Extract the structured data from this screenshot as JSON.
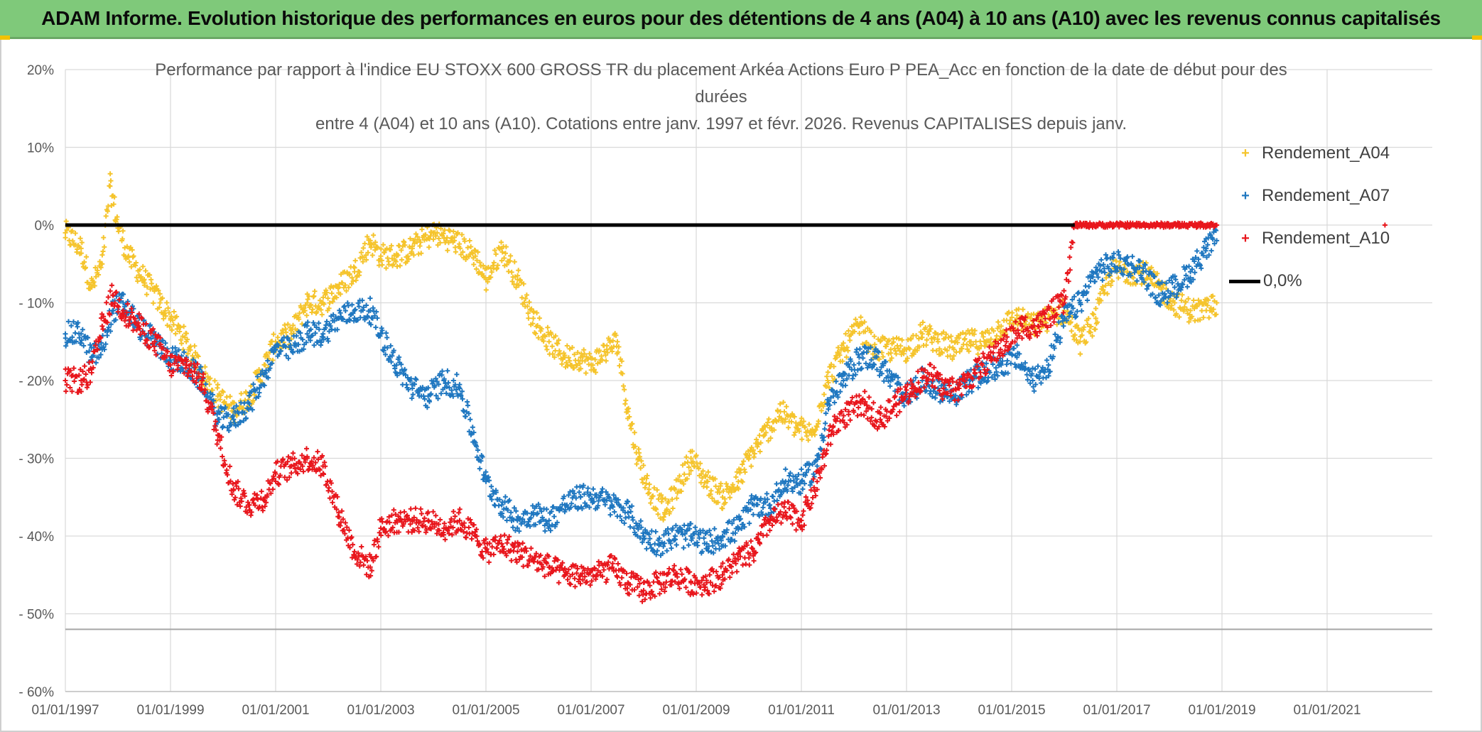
{
  "banner": {
    "title": "ADAM Informe. Evolution historique des performances en euros pour des détentions de 4 ans (A04) à 10 ans (A10) avec les revenus connus capitalisés"
  },
  "chart_data": {
    "type": "scatter",
    "title_lines": [
      "Performance  par rapport à l'indice EU STOXX 600 GROSS TR  du placement Arkéa Actions Euro P PEA_Acc en fonction de la date de début pour des",
      "durées",
      "entre 4 (A04) et 10 ans (A10). Cotations entre janv. 1997 et févr. 2026. Revenus CAPITALISES depuis janv."
    ],
    "x_range": [
      1997.0,
      2023.0
    ],
    "y_range": [
      -60,
      20
    ],
    "x_ticks": [
      "01/01/1997",
      "01/01/1999",
      "01/01/2001",
      "01/01/2003",
      "01/01/2005",
      "01/01/2007",
      "01/01/2009",
      "01/01/2011",
      "01/01/2013",
      "01/01/2015",
      "01/01/2017",
      "01/01/2019",
      "01/01/2021"
    ],
    "y_ticks": [
      "20%",
      "10%",
      "0%",
      "- 10%",
      "- 20%",
      "- 30%",
      "- 40%",
      "- 50%",
      "- 60%"
    ],
    "y_tick_values": [
      20,
      10,
      0,
      -10,
      -20,
      -30,
      -40,
      -50,
      -60
    ],
    "reference_level": -52,
    "series": [
      {
        "name": "Rendement_A04",
        "color": "#f5c42c",
        "points": [
          [
            1997.0,
            -1
          ],
          [
            1997.3,
            -3
          ],
          [
            1997.5,
            -8
          ],
          [
            1997.7,
            -5
          ],
          [
            1997.85,
            5
          ],
          [
            1998.0,
            0
          ],
          [
            1998.2,
            -4
          ],
          [
            1998.5,
            -7
          ],
          [
            1998.8,
            -10
          ],
          [
            1999.0,
            -12
          ],
          [
            1999.3,
            -15
          ],
          [
            1999.6,
            -19
          ],
          [
            1999.9,
            -22
          ],
          [
            2000.2,
            -24
          ],
          [
            2000.5,
            -22
          ],
          [
            2000.8,
            -18
          ],
          [
            2001.0,
            -15
          ],
          [
            2001.3,
            -14
          ],
          [
            2001.6,
            -10
          ],
          [
            2001.9,
            -10
          ],
          [
            2002.2,
            -8
          ],
          [
            2002.5,
            -6
          ],
          [
            2002.8,
            -2
          ],
          [
            2003.0,
            -4
          ],
          [
            2003.3,
            -4
          ],
          [
            2003.6,
            -3
          ],
          [
            2004.0,
            -1
          ],
          [
            2004.4,
            -2
          ],
          [
            2004.8,
            -4
          ],
          [
            2005.0,
            -7
          ],
          [
            2005.3,
            -3
          ],
          [
            2005.6,
            -7
          ],
          [
            2005.9,
            -12
          ],
          [
            2006.2,
            -15
          ],
          [
            2006.5,
            -17
          ],
          [
            2006.8,
            -17
          ],
          [
            2007.0,
            -18
          ],
          [
            2007.3,
            -16
          ],
          [
            2007.5,
            -15
          ],
          [
            2007.7,
            -24
          ],
          [
            2007.9,
            -30
          ],
          [
            2008.1,
            -34
          ],
          [
            2008.4,
            -37
          ],
          [
            2008.7,
            -33
          ],
          [
            2008.9,
            -30
          ],
          [
            2009.2,
            -33
          ],
          [
            2009.5,
            -35
          ],
          [
            2009.8,
            -33
          ],
          [
            2010.0,
            -30
          ],
          [
            2010.3,
            -27
          ],
          [
            2010.6,
            -24
          ],
          [
            2010.9,
            -26
          ],
          [
            2011.2,
            -27
          ],
          [
            2011.5,
            -20
          ],
          [
            2011.8,
            -16
          ],
          [
            2012.1,
            -13
          ],
          [
            2012.4,
            -16
          ],
          [
            2012.7,
            -16
          ],
          [
            2013.0,
            -16
          ],
          [
            2013.3,
            -14
          ],
          [
            2013.6,
            -15
          ],
          [
            2013.9,
            -16
          ],
          [
            2014.2,
            -15
          ],
          [
            2014.5,
            -15
          ],
          [
            2014.8,
            -13
          ],
          [
            2015.1,
            -12
          ],
          [
            2015.4,
            -13
          ],
          [
            2015.7,
            -12
          ],
          [
            2016.0,
            -11
          ],
          [
            2016.3,
            -15
          ],
          [
            2016.6,
            -12
          ],
          [
            2016.9,
            -6
          ],
          [
            2017.2,
            -6
          ],
          [
            2017.5,
            -6
          ],
          [
            2017.8,
            -8
          ],
          [
            2018.1,
            -10
          ],
          [
            2018.4,
            -11
          ],
          [
            2018.7,
            -11
          ],
          [
            2018.9,
            -10
          ]
        ]
      },
      {
        "name": "Rendement_A07",
        "color": "#1f77c0",
        "points": [
          [
            1997.0,
            -14
          ],
          [
            1997.3,
            -14
          ],
          [
            1997.5,
            -17
          ],
          [
            1997.7,
            -16
          ],
          [
            1997.9,
            -11
          ],
          [
            1998.1,
            -10
          ],
          [
            1998.4,
            -13
          ],
          [
            1998.7,
            -15
          ],
          [
            1999.0,
            -17
          ],
          [
            1999.3,
            -18
          ],
          [
            1999.6,
            -20
          ],
          [
            1999.9,
            -25
          ],
          [
            2000.2,
            -25
          ],
          [
            2000.5,
            -23
          ],
          [
            2000.8,
            -19
          ],
          [
            2001.0,
            -16
          ],
          [
            2001.3,
            -16
          ],
          [
            2001.6,
            -14
          ],
          [
            2001.9,
            -14
          ],
          [
            2002.2,
            -12
          ],
          [
            2002.5,
            -11
          ],
          [
            2002.8,
            -11
          ],
          [
            2003.0,
            -14
          ],
          [
            2003.3,
            -18
          ],
          [
            2003.6,
            -21
          ],
          [
            2003.9,
            -22
          ],
          [
            2004.2,
            -20
          ],
          [
            2004.5,
            -21
          ],
          [
            2004.8,
            -28
          ],
          [
            2005.0,
            -33
          ],
          [
            2005.3,
            -36
          ],
          [
            2005.6,
            -38
          ],
          [
            2005.9,
            -37
          ],
          [
            2006.2,
            -38
          ],
          [
            2006.5,
            -36
          ],
          [
            2006.8,
            -35
          ],
          [
            2007.1,
            -35
          ],
          [
            2007.4,
            -36
          ],
          [
            2007.7,
            -37
          ],
          [
            2008.0,
            -40
          ],
          [
            2008.3,
            -41
          ],
          [
            2008.6,
            -40
          ],
          [
            2008.9,
            -40
          ],
          [
            2009.2,
            -41
          ],
          [
            2009.5,
            -40
          ],
          [
            2009.8,
            -39
          ],
          [
            2010.1,
            -36
          ],
          [
            2010.4,
            -36
          ],
          [
            2010.7,
            -33
          ],
          [
            2011.0,
            -33
          ],
          [
            2011.3,
            -31
          ],
          [
            2011.5,
            -23
          ],
          [
            2011.8,
            -20
          ],
          [
            2012.1,
            -17
          ],
          [
            2012.4,
            -17
          ],
          [
            2012.7,
            -20
          ],
          [
            2013.0,
            -22
          ],
          [
            2013.3,
            -20
          ],
          [
            2013.6,
            -21
          ],
          [
            2013.9,
            -22
          ],
          [
            2014.2,
            -20
          ],
          [
            2014.5,
            -19
          ],
          [
            2014.8,
            -18
          ],
          [
            2015.1,
            -17
          ],
          [
            2015.4,
            -20
          ],
          [
            2015.7,
            -18
          ],
          [
            2016.0,
            -12
          ],
          [
            2016.3,
            -10
          ],
          [
            2016.6,
            -6
          ],
          [
            2016.9,
            -5
          ],
          [
            2017.2,
            -5
          ],
          [
            2017.5,
            -6
          ],
          [
            2017.8,
            -9
          ],
          [
            2018.1,
            -8
          ],
          [
            2018.4,
            -6
          ],
          [
            2018.7,
            -3
          ],
          [
            2018.9,
            -2
          ]
        ]
      },
      {
        "name": "Rendement_A10",
        "color": "#e8161c",
        "points": [
          [
            1997.0,
            -20
          ],
          [
            1997.3,
            -20
          ],
          [
            1997.5,
            -19
          ],
          [
            1997.7,
            -13
          ],
          [
            1997.9,
            -9
          ],
          [
            1998.1,
            -11
          ],
          [
            1998.4,
            -13
          ],
          [
            1998.7,
            -15
          ],
          [
            1999.0,
            -18
          ],
          [
            1999.3,
            -18
          ],
          [
            1999.6,
            -20
          ],
          [
            1999.9,
            -27
          ],
          [
            2000.2,
            -34
          ],
          [
            2000.5,
            -36
          ],
          [
            2000.8,
            -35
          ],
          [
            2001.0,
            -32
          ],
          [
            2001.3,
            -31
          ],
          [
            2001.6,
            -30
          ],
          [
            2001.9,
            -31
          ],
          [
            2002.2,
            -37
          ],
          [
            2002.5,
            -42
          ],
          [
            2002.8,
            -44
          ],
          [
            2003.0,
            -39
          ],
          [
            2003.3,
            -38
          ],
          [
            2003.6,
            -38
          ],
          [
            2003.9,
            -38
          ],
          [
            2004.2,
            -39
          ],
          [
            2004.5,
            -38
          ],
          [
            2004.8,
            -40
          ],
          [
            2005.0,
            -42
          ],
          [
            2005.3,
            -41
          ],
          [
            2005.6,
            -42
          ],
          [
            2005.9,
            -43
          ],
          [
            2006.2,
            -44
          ],
          [
            2006.5,
            -45
          ],
          [
            2006.8,
            -45
          ],
          [
            2007.1,
            -45
          ],
          [
            2007.4,
            -44
          ],
          [
            2007.7,
            -46
          ],
          [
            2008.0,
            -47
          ],
          [
            2008.3,
            -46
          ],
          [
            2008.6,
            -45
          ],
          [
            2008.9,
            -46
          ],
          [
            2009.2,
            -46
          ],
          [
            2009.5,
            -45
          ],
          [
            2009.8,
            -43
          ],
          [
            2010.1,
            -42
          ],
          [
            2010.4,
            -38
          ],
          [
            2010.7,
            -37
          ],
          [
            2011.0,
            -38
          ],
          [
            2011.3,
            -33
          ],
          [
            2011.6,
            -26
          ],
          [
            2011.9,
            -24
          ],
          [
            2012.2,
            -23
          ],
          [
            2012.5,
            -25
          ],
          [
            2012.8,
            -23
          ],
          [
            2013.1,
            -21
          ],
          [
            2013.4,
            -19
          ],
          [
            2013.7,
            -21
          ],
          [
            2014.0,
            -21
          ],
          [
            2014.3,
            -19
          ],
          [
            2014.6,
            -17
          ],
          [
            2014.9,
            -15
          ],
          [
            2015.2,
            -13
          ],
          [
            2015.5,
            -13
          ],
          [
            2015.8,
            -11
          ],
          [
            2016.0,
            -10
          ],
          [
            2016.2,
            0
          ],
          [
            2016.5,
            0
          ],
          [
            2016.8,
            0
          ],
          [
            2017.1,
            0
          ],
          [
            2017.4,
            0
          ],
          [
            2017.7,
            0
          ],
          [
            2018.0,
            0
          ],
          [
            2018.3,
            0
          ],
          [
            2018.6,
            0
          ],
          [
            2018.9,
            0
          ],
          [
            2022.1,
            0
          ]
        ]
      },
      {
        "name": "0,0%",
        "color": "#000000",
        "type": "line",
        "points": [
          [
            1997.0,
            0
          ],
          [
            2016.2,
            0
          ]
        ]
      }
    ]
  }
}
